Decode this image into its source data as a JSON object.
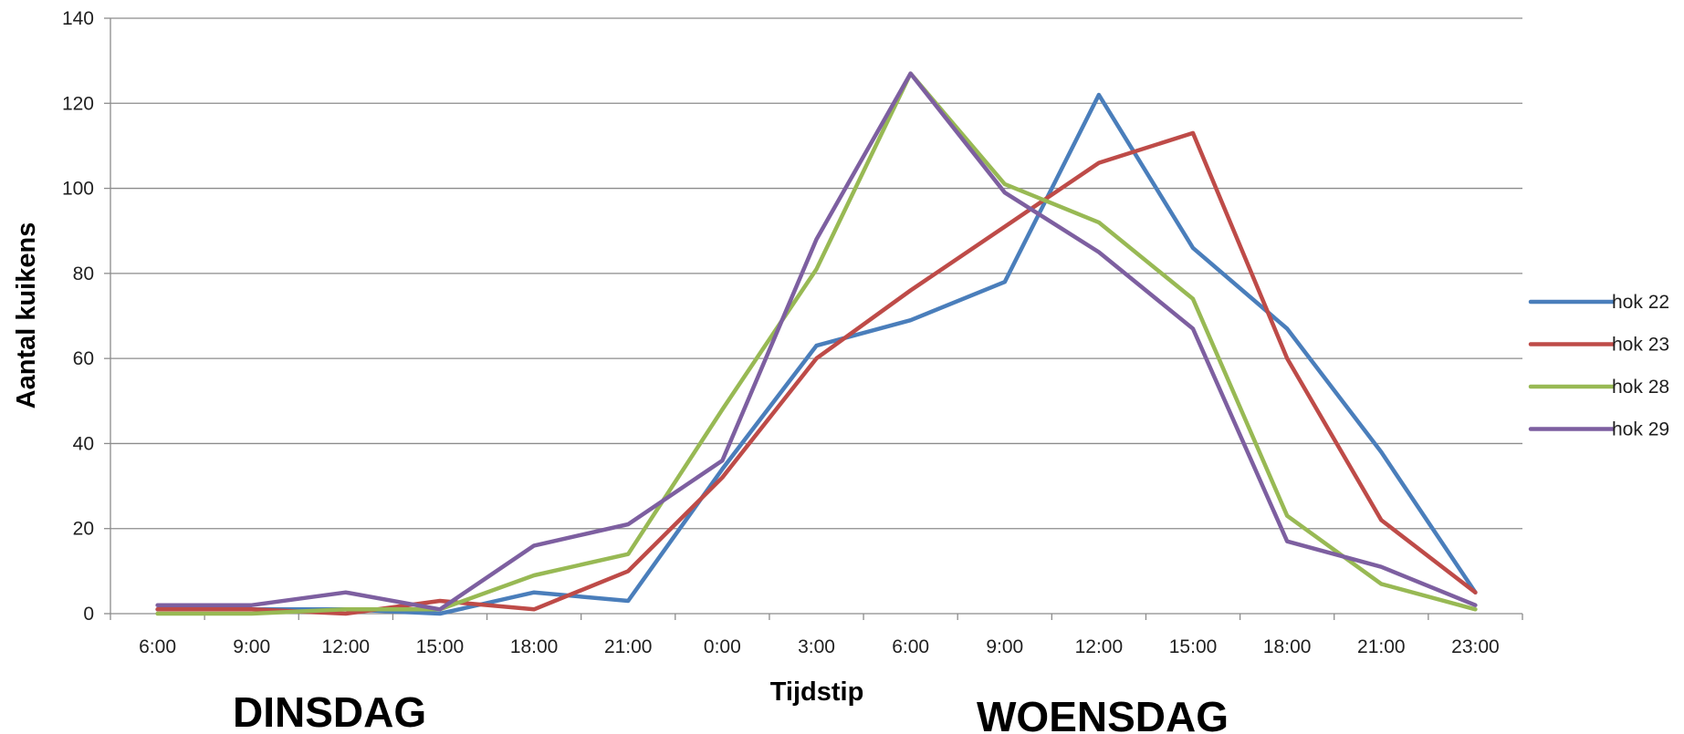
{
  "chart_data": {
    "type": "line",
    "categories": [
      "6:00",
      "9:00",
      "12:00",
      "15:00",
      "18:00",
      "21:00",
      "0:00",
      "3:00",
      "6:00",
      "9:00",
      "12:00",
      "15:00",
      "18:00",
      "21:00",
      "23:00"
    ],
    "series": [
      {
        "name": "hok 22",
        "color": "#4a7ebb",
        "values": [
          1,
          1,
          1,
          0,
          5,
          3,
          34,
          63,
          69,
          78,
          122,
          86,
          67,
          38,
          5
        ]
      },
      {
        "name": "hok 23",
        "color": "#be4b48",
        "values": [
          1,
          1,
          0,
          3,
          1,
          10,
          32,
          60,
          76,
          91,
          106,
          113,
          60,
          22,
          5
        ]
      },
      {
        "name": "hok 28",
        "color": "#98b954",
        "values": [
          0,
          0,
          1,
          1,
          9,
          14,
          48,
          81,
          127,
          101,
          92,
          74,
          23,
          7,
          1
        ]
      },
      {
        "name": "hok 29",
        "color": "#7d5fa0",
        "values": [
          2,
          2,
          5,
          1,
          16,
          21,
          36,
          88,
          127,
          99,
          85,
          67,
          17,
          11,
          2
        ]
      }
    ],
    "xlabel": "Tijdstip",
    "ylabel": "Aantal kuikens",
    "ylim": [
      0,
      140
    ],
    "yticks": [
      0,
      20,
      40,
      60,
      80,
      100,
      120,
      140
    ],
    "grid": true,
    "legend": "right",
    "day_labels": [
      "DINSDAG",
      "WOENSDAG"
    ]
  }
}
